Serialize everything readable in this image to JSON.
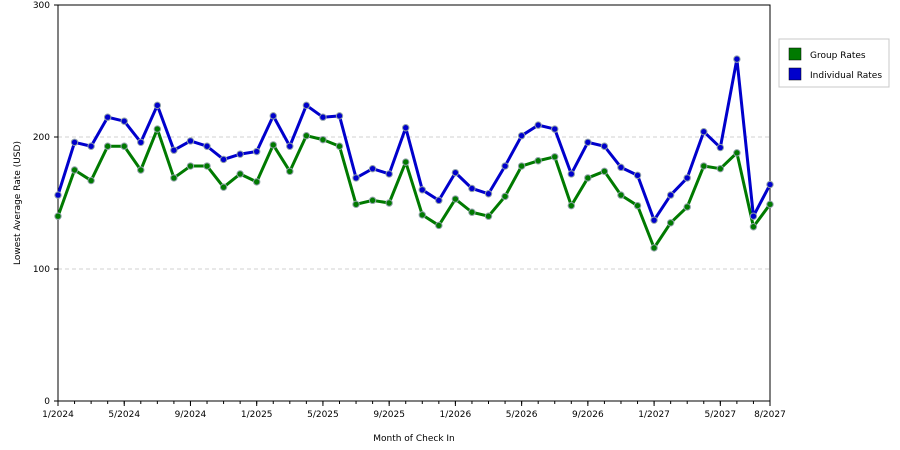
{
  "chart_data": {
    "type": "line",
    "xlabel": "Month of Check In",
    "ylabel": "Lowest Average Rate (USD)",
    "ylim": [
      0,
      300
    ],
    "yticks": [
      0,
      100,
      200,
      300
    ],
    "grid": true,
    "legend_position": "right",
    "x": [
      "1/2024",
      "2/2024",
      "3/2024",
      "4/2024",
      "5/2024",
      "6/2024",
      "7/2024",
      "8/2024",
      "9/2024",
      "10/2024",
      "11/2024",
      "12/2024",
      "1/2025",
      "2/2025",
      "3/2025",
      "4/2025",
      "5/2025",
      "6/2025",
      "7/2025",
      "8/2025",
      "9/2025",
      "10/2025",
      "11/2025",
      "12/2025",
      "1/2026",
      "2/2026",
      "3/2026",
      "4/2026",
      "5/2026",
      "6/2026",
      "7/2026",
      "8/2026",
      "9/2026",
      "10/2026",
      "11/2026",
      "12/2026",
      "1/2027",
      "2/2027",
      "3/2027",
      "4/2027",
      "5/2027",
      "6/2027",
      "7/2027",
      "8/2027"
    ],
    "xtick_labels": [
      "1/2024",
      "5/2024",
      "9/2024",
      "1/2025",
      "5/2025",
      "9/2025",
      "1/2026",
      "5/2026",
      "9/2026",
      "1/2027",
      "5/2027",
      "8/2027"
    ],
    "series": [
      {
        "name": "Group Rates",
        "color": "#007a00",
        "values": [
          140,
          175,
          167,
          193,
          193,
          175,
          206,
          169,
          178,
          178,
          162,
          172,
          166,
          194,
          174,
          201,
          198,
          193,
          149,
          152,
          150,
          181,
          141,
          133,
          153,
          143,
          140,
          155,
          178,
          182,
          185,
          148,
          169,
          174,
          156,
          148,
          116,
          135,
          147,
          178,
          176,
          188,
          132,
          149
        ]
      },
      {
        "name": "Individual Rates",
        "color": "#0000cc",
        "values": [
          156,
          196,
          193,
          215,
          212,
          196,
          224,
          190,
          197,
          193,
          183,
          187,
          189,
          216,
          193,
          224,
          215,
          216,
          169,
          176,
          172,
          207,
          160,
          152,
          173,
          161,
          157,
          178,
          201,
          209,
          206,
          172,
          196,
          193,
          177,
          171,
          137,
          156,
          169,
          204,
          192,
          259,
          140,
          164
        ]
      }
    ]
  }
}
